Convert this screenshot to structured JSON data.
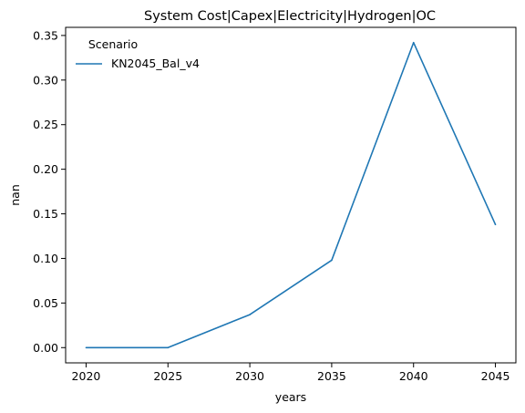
{
  "chart_data": {
    "type": "line",
    "title": "System Cost|Capex|Electricity|Hydrogen|OC",
    "xlabel": "years",
    "ylabel": "nan",
    "x": [
      2020,
      2025,
      2030,
      2035,
      2040,
      2045
    ],
    "series": [
      {
        "name": "KN2045_Bal_v4",
        "color": "#1f77b4",
        "values": [
          0.0,
          0.0,
          0.037,
          0.098,
          0.342,
          0.138
        ]
      }
    ],
    "xticks": [
      "2020",
      "2025",
      "2030",
      "2035",
      "2040",
      "2045"
    ],
    "yticks": [
      "0.00",
      "0.05",
      "0.10",
      "0.15",
      "0.20",
      "0.25",
      "0.30",
      "0.35"
    ],
    "xlim": [
      2018.75,
      2046.25
    ],
    "ylim": [
      -0.0171,
      0.3591
    ],
    "grid": false,
    "legend": {
      "title": "Scenario",
      "placement": "upper-left"
    }
  }
}
